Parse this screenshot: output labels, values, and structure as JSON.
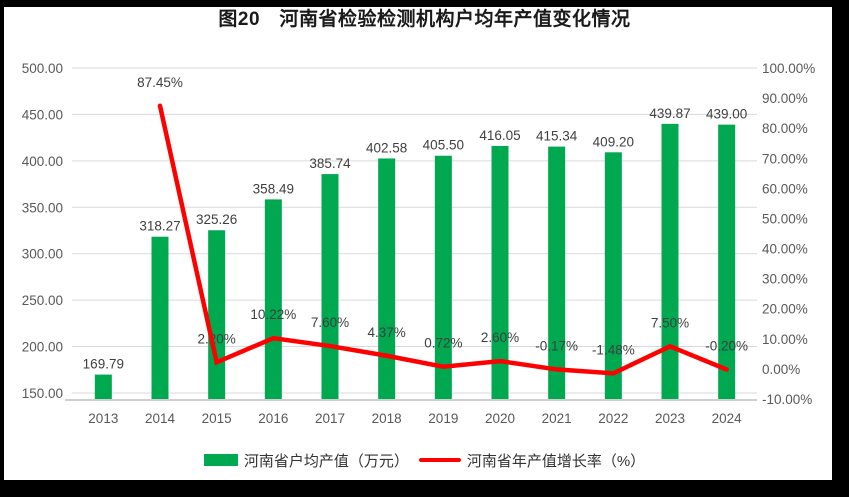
{
  "title": "图20　河南省检验检测机构户均年产值变化情况",
  "colors": {
    "bar": "#00A850",
    "line": "#FF0000",
    "grid": "#D9D9D9",
    "axis_line": "#BFBFBF",
    "tick_text": "#595959",
    "label_text": "#3F3F3F",
    "frame": "#000000"
  },
  "chart_data": {
    "type": "combo",
    "title": "图20　河南省检验检测机构户均年产值变化情况",
    "categories": [
      "2013",
      "2014",
      "2015",
      "2016",
      "2017",
      "2018",
      "2019",
      "2020",
      "2021",
      "2022",
      "2023",
      "2024"
    ],
    "series": [
      {
        "name": "河南省户均产值（万元）",
        "type": "bar",
        "axis": "left",
        "values": [
          169.79,
          318.27,
          325.26,
          358.49,
          385.74,
          402.58,
          405.5,
          416.05,
          415.34,
          409.2,
          439.87,
          439.0
        ],
        "labels": [
          "169.79",
          "318.27",
          "325.26",
          "358.49",
          "385.74",
          "402.58",
          "405.50",
          "416.05",
          "415.34",
          "409.20",
          "439.87",
          "439.00"
        ]
      },
      {
        "name": "河南省年产值增长率（%）",
        "type": "line",
        "axis": "right",
        "values": [
          null,
          87.45,
          2.2,
          10.22,
          7.6,
          4.37,
          0.72,
          2.6,
          -0.17,
          -1.48,
          7.5,
          -0.2
        ],
        "labels": [
          null,
          "87.45%",
          "2.20%",
          "10.22%",
          "7.60%",
          "4.37%",
          "0.72%",
          "2.60%",
          "-0.17%",
          "-1.48%",
          "7.50%",
          "-0.20%"
        ]
      }
    ],
    "left_axis": {
      "min": 143.5,
      "max": 500,
      "tick_values": [
        150,
        200,
        250,
        300,
        350,
        400,
        450,
        500
      ],
      "tick_labels": [
        "150.00",
        "200.00",
        "250.00",
        "300.00",
        "350.00",
        "400.00",
        "450.00",
        "500.00"
      ]
    },
    "right_axis": {
      "min": -10,
      "max": 100,
      "tick_values": [
        -10,
        0,
        10,
        20,
        30,
        40,
        50,
        60,
        70,
        80,
        90,
        100
      ],
      "tick_labels": [
        "-10.00%",
        "0.00%",
        "10.00%",
        "20.00%",
        "30.00%",
        "40.00%",
        "50.00%",
        "60.00%",
        "70.00%",
        "80.00%",
        "90.00%",
        "100.00%"
      ]
    },
    "grid": true,
    "legend_position": "bottom"
  }
}
